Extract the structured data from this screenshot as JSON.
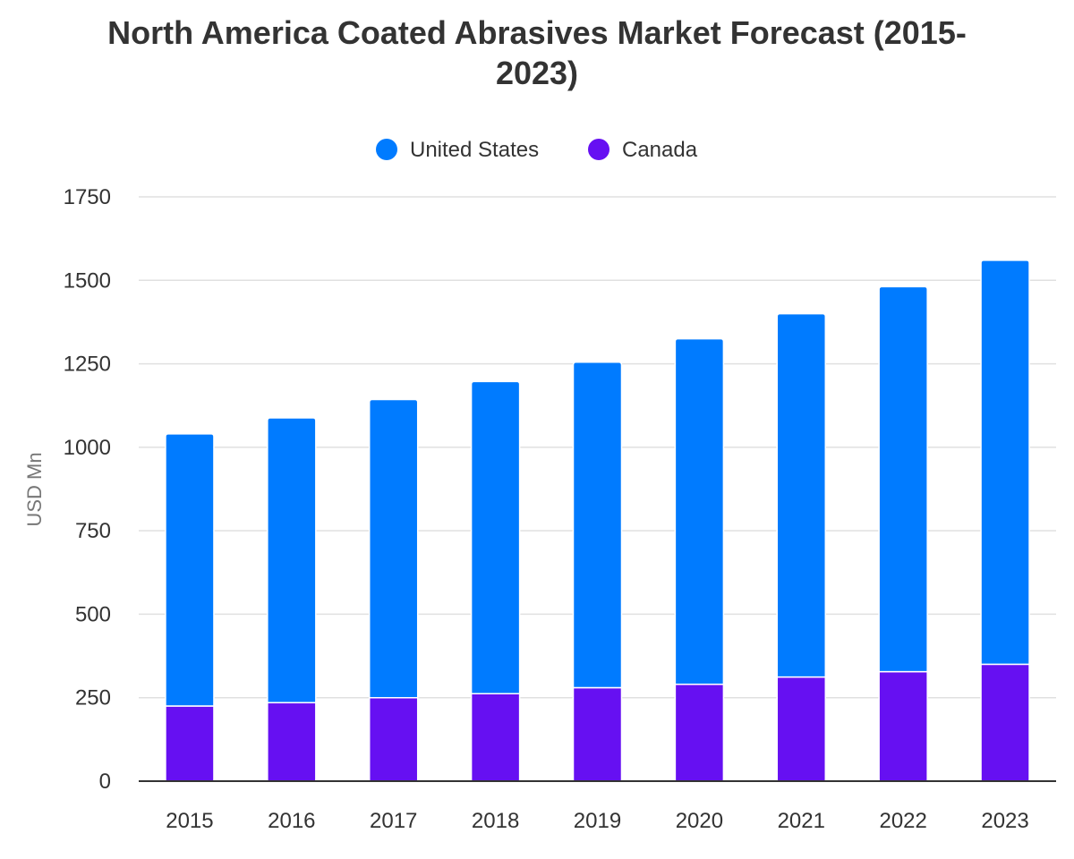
{
  "chart_data": {
    "type": "bar",
    "stacked": true,
    "title": "North America Coated Abrasives Market Forecast (2015-2023)",
    "title_lines": [
      "North America Coated Abrasives Market Forecast (2015-",
      "2023)"
    ],
    "xlabel": "",
    "ylabel": "USD Mn",
    "ylim": [
      0,
      1750
    ],
    "yticks": [
      0,
      250,
      500,
      750,
      1000,
      1250,
      1500,
      1750
    ],
    "grid": true,
    "legend_position": "top",
    "categories": [
      "2015",
      "2016",
      "2017",
      "2018",
      "2019",
      "2020",
      "2021",
      "2022",
      "2023"
    ],
    "series": [
      {
        "name": "Canada",
        "color": "#6610f2",
        "values": [
          225,
          235,
          250,
          262,
          280,
          290,
          312,
          328,
          350
        ]
      },
      {
        "name": "United States",
        "color": "#007bff",
        "values": [
          815,
          853,
          893,
          935,
          975,
          1035,
          1088,
          1153,
          1210
        ]
      }
    ],
    "legend": [
      {
        "name": "United States",
        "color": "#007bff"
      },
      {
        "name": "Canada",
        "color": "#6610f2"
      }
    ]
  }
}
